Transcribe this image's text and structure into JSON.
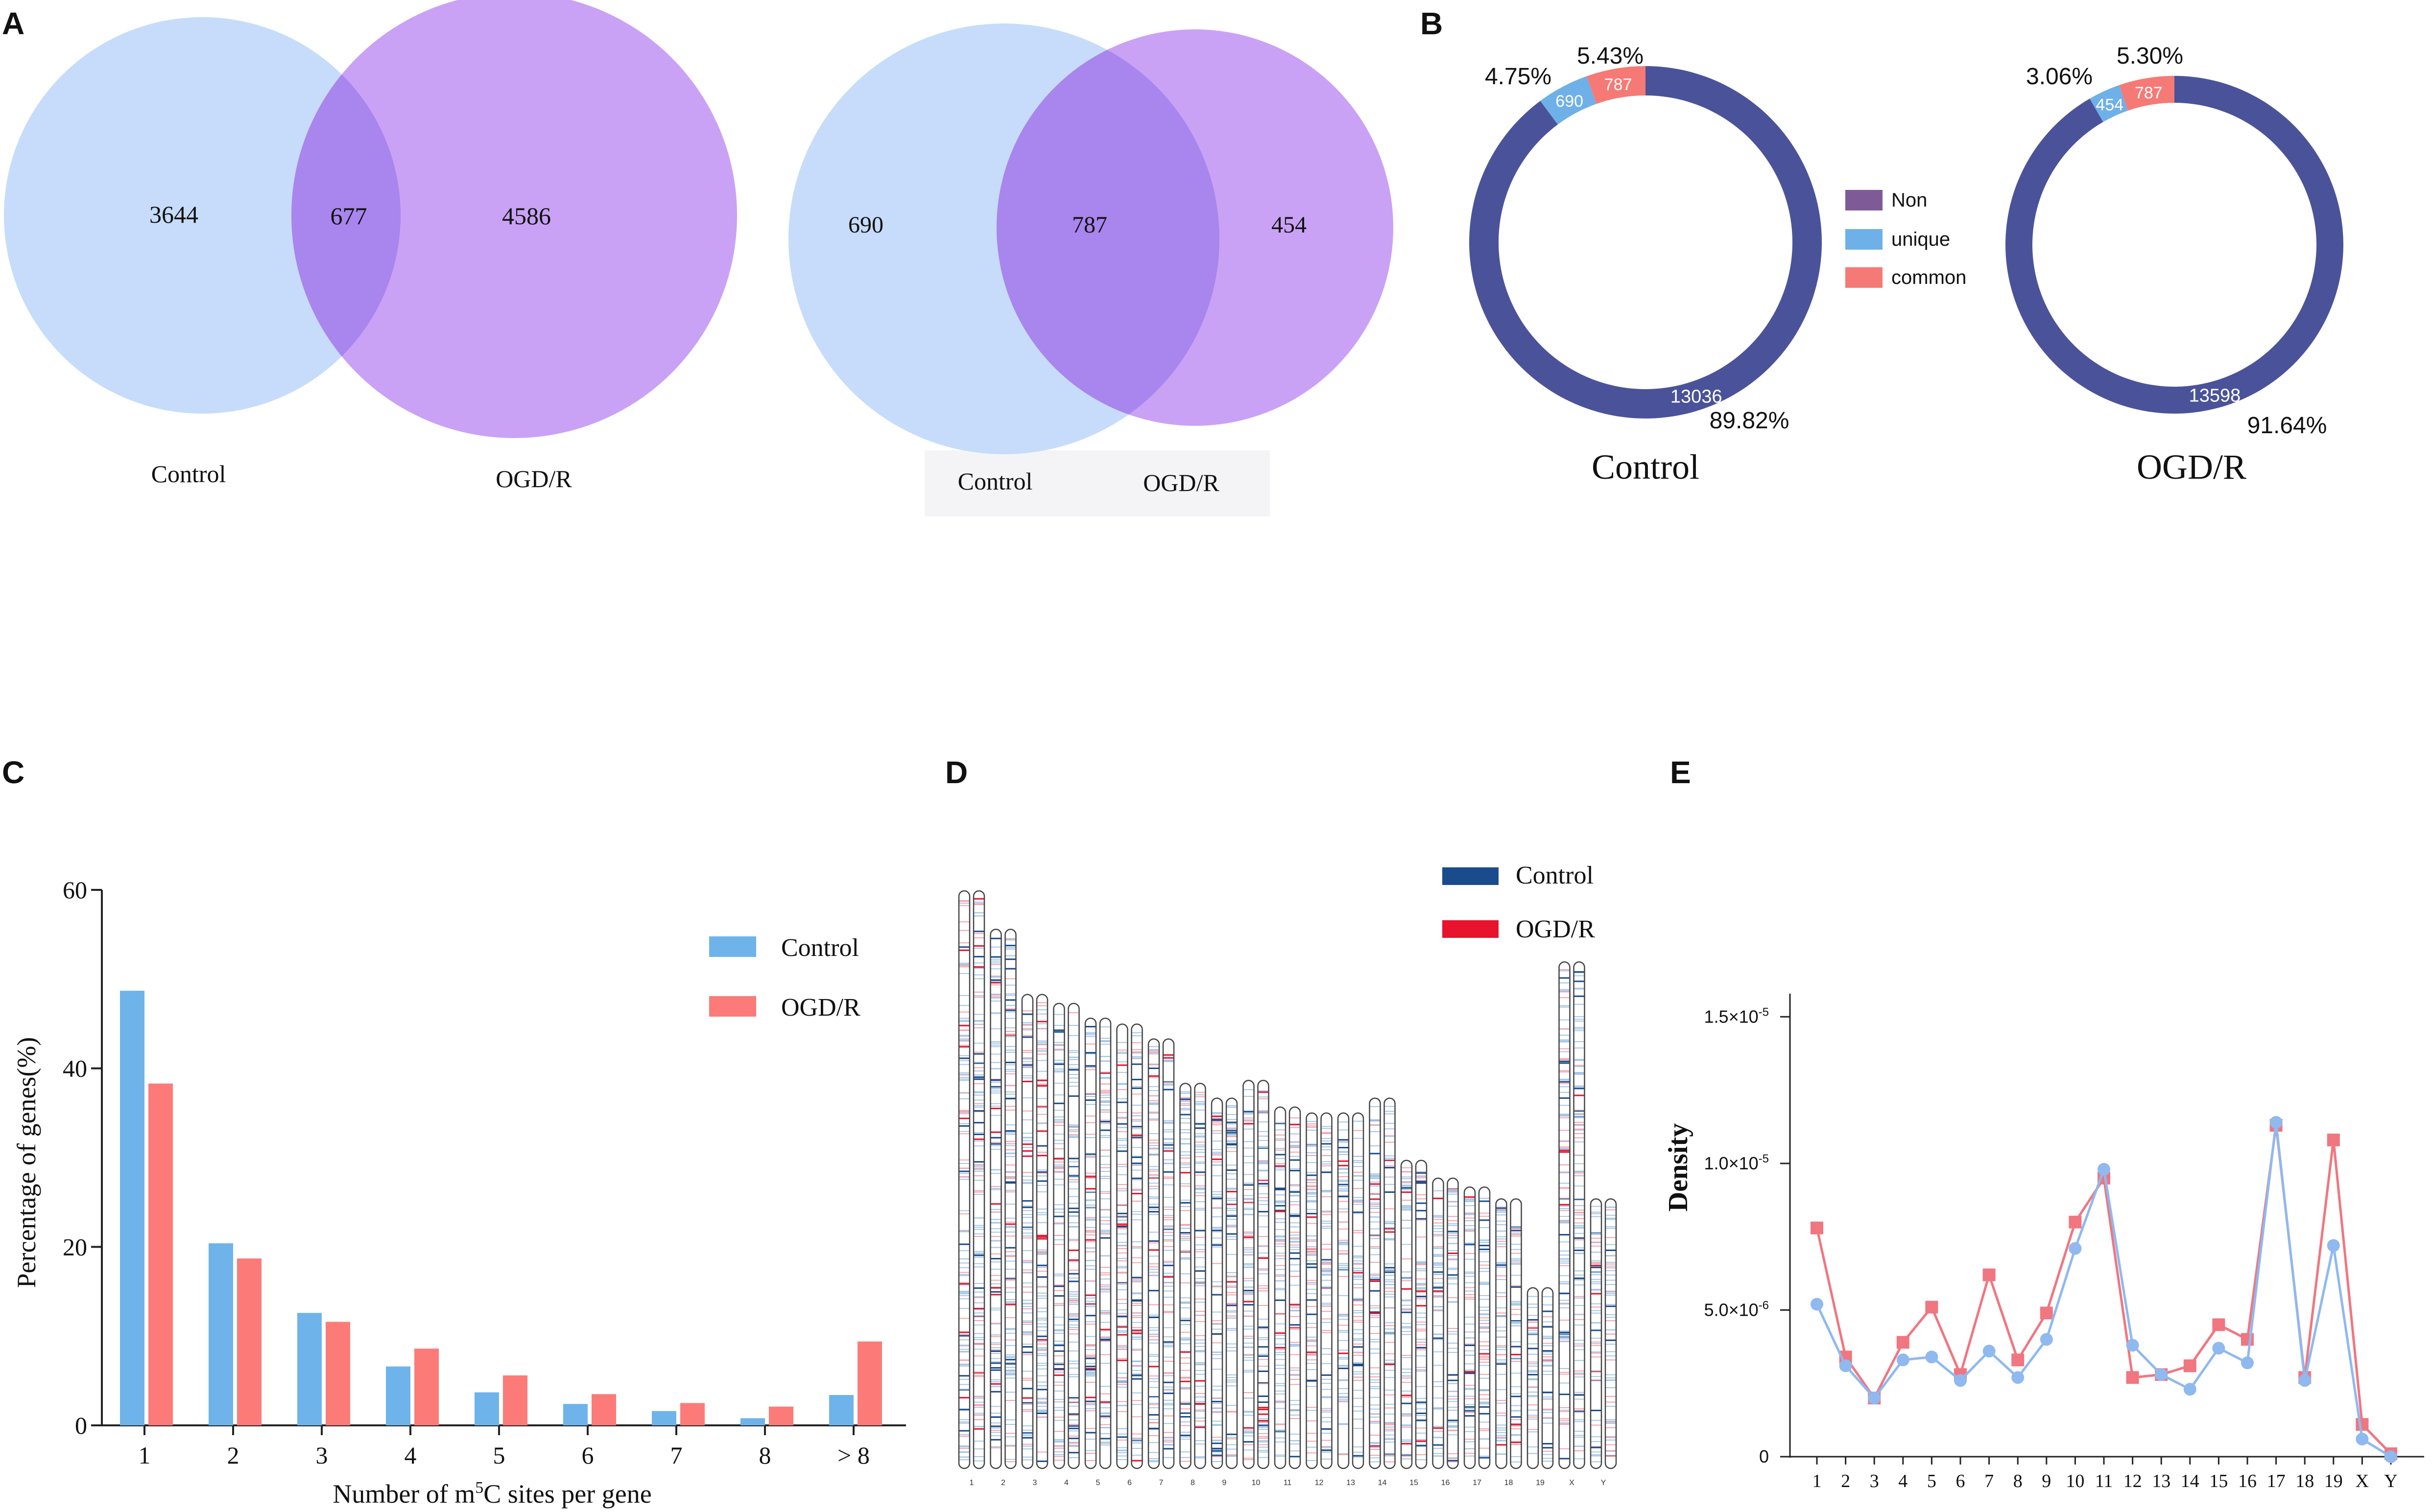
{
  "panels": {
    "a": "A",
    "b": "B",
    "c": "C",
    "d": "D",
    "e": "E"
  },
  "colors": {
    "blue_circle": "#c6dcfa",
    "purple_circle": "#c9a2f5",
    "overlap": "#a985ee",
    "donut_non": "#4a5399",
    "donut_unique": "#6eb0e8",
    "donut_common": "#f57a76",
    "legend_non": "#7e5a96",
    "bar_control": "#6eb4ea",
    "bar_ogdr": "#fc7b79",
    "line_control": "#8fb9ef",
    "line_ogdr": "#f07680",
    "karyo_control": "#1a4b8c",
    "karyo_ogdr": "#e8132d"
  },
  "chart_data": [
    {
      "type": "venn",
      "panel": "A",
      "sets": [
        "Control",
        "OGD/R"
      ],
      "values": {
        "control_only": "3644",
        "overlap": "677",
        "ogdr_only": "4586"
      },
      "labels": [
        "Control",
        "OGD/R"
      ]
    },
    {
      "type": "venn",
      "panel": "A",
      "sets": [
        "Control",
        "OGD/R"
      ],
      "values": {
        "control_only": "690",
        "overlap": "787",
        "ogdr_only": "454"
      },
      "labels": [
        "Control",
        "OGD/R"
      ]
    },
    {
      "type": "pie",
      "panel": "B",
      "title": "Control",
      "slices": [
        {
          "name": "Non",
          "value": 13036,
          "label": "13036",
          "pct": "89.82%"
        },
        {
          "name": "unique",
          "value": 690,
          "label": "690",
          "pct": "4.75%"
        },
        {
          "name": "common",
          "value": 787,
          "label": "787",
          "pct": "5.43%"
        }
      ]
    },
    {
      "type": "pie",
      "panel": "B",
      "title": "OGD/R",
      "slices": [
        {
          "name": "Non",
          "value": 13598,
          "label": "13598",
          "pct": "91.64%"
        },
        {
          "name": "unique",
          "value": 454,
          "label": "454",
          "pct": "3.06%"
        },
        {
          "name": "common",
          "value": 787,
          "label": "787",
          "pct": "5.30%"
        }
      ]
    },
    {
      "type": "bar",
      "panel": "C",
      "categories": [
        "1",
        "2",
        "3",
        "4",
        "5",
        "6",
        "7",
        "8",
        "> 8"
      ],
      "series": [
        {
          "name": "Control",
          "values": [
            48.7,
            20.4,
            12.6,
            6.6,
            3.7,
            2.4,
            1.6,
            0.8,
            3.4
          ]
        },
        {
          "name": "OGD/R",
          "values": [
            38.3,
            18.7,
            11.6,
            8.6,
            5.6,
            3.5,
            2.5,
            2.1,
            9.4
          ]
        }
      ],
      "xlabel_prefix": "Number of  m",
      "xlabel_sup": "5",
      "xlabel_suffix": "C sites per gene",
      "ylabel": "Percentage of genes(%)",
      "ylim": [
        0,
        60
      ],
      "yticks": [
        "0",
        "20",
        "40",
        "60"
      ],
      "legend": [
        "Control",
        "OGD/R"
      ]
    },
    {
      "type": "heatmap",
      "panel": "D",
      "chromosomes": [
        "1",
        "2",
        "3",
        "4",
        "5",
        "6",
        "7",
        "8",
        "9",
        "10",
        "11",
        "12",
        "13",
        "14",
        "15",
        "16",
        "17",
        "18",
        "19",
        "X",
        "Y"
      ],
      "lengths_mb": [
        195,
        182,
        160,
        157,
        152,
        150,
        145,
        130,
        125,
        131,
        122,
        120,
        120,
        125,
        104,
        98,
        95,
        91,
        61,
        171,
        91
      ],
      "legend": [
        "Control",
        "OGD/R"
      ]
    },
    {
      "type": "line",
      "panel": "E",
      "categories": [
        "1",
        "2",
        "3",
        "4",
        "5",
        "6",
        "7",
        "8",
        "9",
        "10",
        "11",
        "12",
        "13",
        "14",
        "15",
        "16",
        "17",
        "18",
        "19",
        "X",
        "Y"
      ],
      "series": [
        {
          "name": "Control",
          "values": [
            5.2e-06,
            3.1e-06,
            2e-06,
            3.3e-06,
            3.4e-06,
            2.6e-06,
            3.6e-06,
            2.7e-06,
            4e-06,
            7.1e-06,
            9.8e-06,
            3.8e-06,
            2.8e-06,
            2.3e-06,
            3.7e-06,
            3.2e-06,
            1.14e-05,
            2.6e-06,
            7.2e-06,
            6e-07,
            0.0
          ]
        },
        {
          "name": "OGD/R",
          "values": [
            7.8e-06,
            3.4e-06,
            2e-06,
            3.9e-06,
            5.1e-06,
            2.8e-06,
            6.2e-06,
            3.3e-06,
            4.9e-06,
            8e-06,
            9.5e-06,
            2.7e-06,
            2.8e-06,
            3.1e-06,
            4.5e-06,
            4e-06,
            1.13e-05,
            2.7e-06,
            1.08e-05,
            1.1e-06,
            1e-07
          ]
        }
      ],
      "ylabel": "Density",
      "ylim": [
        0,
        1.5e-05
      ],
      "ytick_labels": [
        {
          "value": 0,
          "base": "0",
          "exp": ""
        },
        {
          "value": 5e-06,
          "base": "5.0×10",
          "exp": "-6"
        },
        {
          "value": 1e-05,
          "base": "1.0×10",
          "exp": "-5"
        },
        {
          "value": 1.5e-05,
          "base": "1.5×10",
          "exp": "-5"
        }
      ]
    }
  ],
  "legend_b": {
    "non": "Non",
    "unique": "unique",
    "common": "common"
  }
}
